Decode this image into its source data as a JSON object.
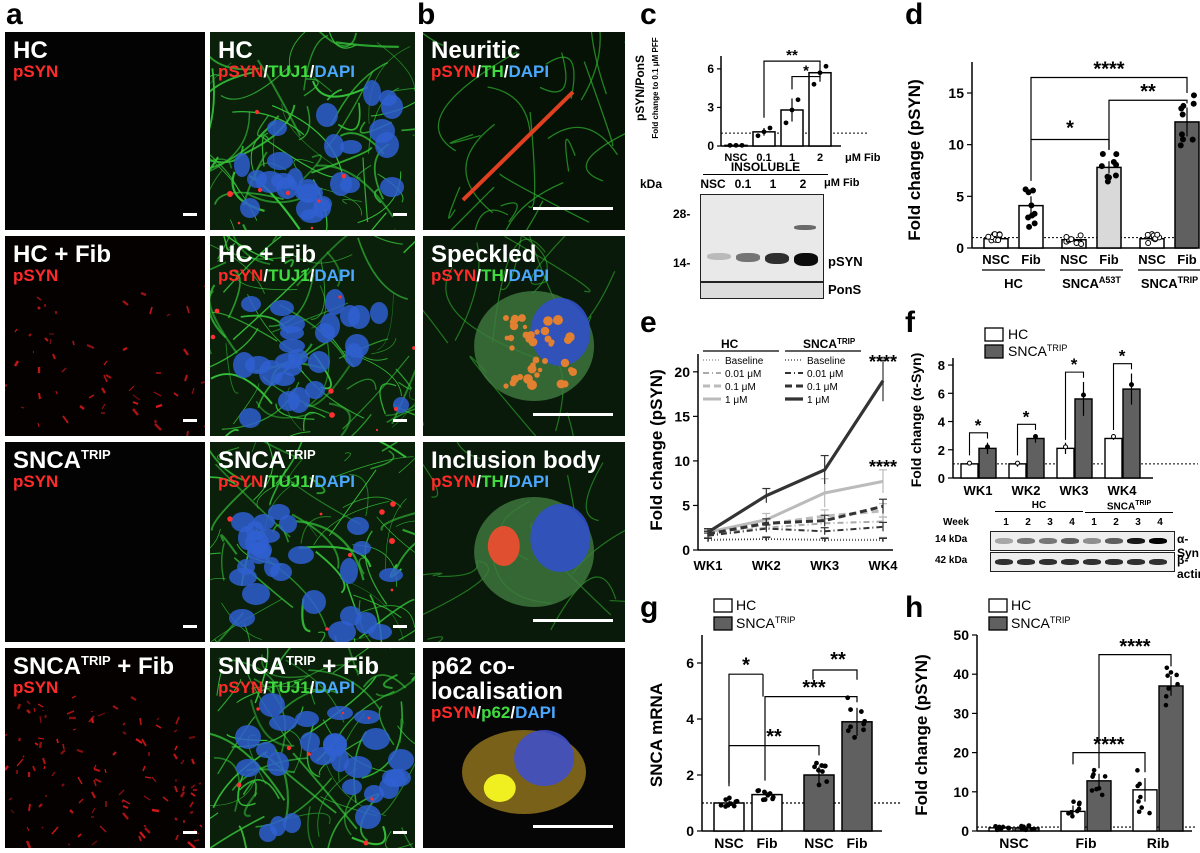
{
  "panel_letters": {
    "a": "a",
    "b": "b",
    "c": "c",
    "d": "d",
    "e": "e",
    "f": "f",
    "g": "g",
    "h": "h"
  },
  "micro": {
    "a1": {
      "title": "HC",
      "ch": [
        "pSYN"
      ]
    },
    "a2": {
      "title": "HC",
      "ch": [
        "pSYN",
        "/",
        "TUJ1",
        "/",
        "DAPI"
      ]
    },
    "a3": {
      "title": "HC + Fib",
      "ch": [
        "pSYN"
      ]
    },
    "a4": {
      "title": "HC + Fib",
      "ch": [
        "pSYN",
        "/",
        "TUJ1",
        "/",
        "DAPI"
      ]
    },
    "a5": {
      "title": "SNCA",
      "sup": "TRIP",
      "ch": [
        "pSYN"
      ]
    },
    "a6": {
      "title": "SNCA",
      "sup": "TRIP",
      "ch": [
        "pSYN",
        "/",
        "TUJ1",
        "/",
        "DAPI"
      ]
    },
    "a7": {
      "title": "SNCA",
      "sup": "TRIP",
      "suffix": " + Fib",
      "ch": [
        "pSYN"
      ]
    },
    "a8": {
      "title": "SNCA",
      "sup": "TRIP",
      "suffix": " + Fib",
      "ch": [
        "pSYN",
        "/",
        "TUJ1",
        "/",
        "DAPI"
      ]
    },
    "b1": {
      "title": "Neuritic",
      "ch": [
        "pSYN",
        "/",
        "TH",
        "/",
        "DAPI"
      ]
    },
    "b2": {
      "title": "Speckled",
      "ch": [
        "pSYN",
        "/",
        "TH",
        "/",
        "DAPI"
      ]
    },
    "b3": {
      "title": "Inclusion body",
      "ch": [
        "pSYN",
        "/",
        "TH",
        "/",
        "DAPI"
      ]
    },
    "b4": {
      "title": "p62 co-localisation",
      "ch": [
        "pSYN",
        "/",
        "p62",
        "/",
        "DAPI"
      ]
    }
  },
  "colors": {
    "red": "#ff2a2a",
    "green": "#3fdc3f",
    "blue": "#4aa8ff",
    "light_bar": "#d9d9d9",
    "dark_bar": "#555555"
  },
  "blot_c": {
    "title": "INSOLUBLE",
    "kda": "kDa",
    "lanes": [
      "NSC",
      "0.1",
      "1",
      "2"
    ],
    "unit": "μM Fib",
    "markers": [
      "28-",
      "14-"
    ],
    "band1": "pSYN",
    "band2": "PonS"
  },
  "blot_f": {
    "week_label": "Week",
    "weeks": [
      "1",
      "2",
      "3",
      "4",
      "1",
      "2",
      "3",
      "4"
    ],
    "groups": [
      "HC",
      "SNCA"
    ],
    "group_sup": "TRIP",
    "rows": [
      {
        "kda": "14 kDa",
        "name": "α-Syn"
      },
      {
        "kda": "42 kDa",
        "name": "β-actin"
      }
    ]
  },
  "chart_data": [
    {
      "panel": "c",
      "type": "bar",
      "categories": [
        "NSC",
        "0.1",
        "1",
        "2"
      ],
      "values": [
        0.05,
        1.1,
        2.8,
        5.7
      ],
      "errors": [
        0.02,
        0.3,
        0.9,
        0.7
      ],
      "points": [
        [
          0.05,
          0.05,
          0.05
        ],
        [
          0.8,
          1.1,
          1.4
        ],
        [
          1.8,
          2.8,
          3.6
        ],
        [
          4.8,
          5.7,
          6.2
        ]
      ],
      "ylabel": "pSYN/PonS",
      "ylabel2": "Fold change to 0.1 μM PFF",
      "xunit": "μM Fib",
      "yticks": [
        0,
        3,
        6
      ],
      "ylim": [
        0,
        7
      ],
      "ref": 1,
      "sig": [
        {
          "text": "**"
        },
        {
          "text": "*"
        }
      ]
    },
    {
      "panel": "d",
      "type": "bar",
      "categories": [
        "NSC",
        "Fib",
        "NSC",
        "Fib",
        "NSC",
        "Fib"
      ],
      "groups": [
        {
          "name": "HC"
        },
        {
          "name": "SNCA",
          "sup": "A53T"
        },
        {
          "name": "SNCA",
          "sup": "TRIP"
        }
      ],
      "values": [
        0.9,
        4.1,
        0.8,
        7.8,
        0.9,
        12.2
      ],
      "errors": [
        0.2,
        0.9,
        0.2,
        0.6,
        0.2,
        1.4
      ],
      "ylabel": "Fold change (pSYN)",
      "yticks": [
        0,
        5,
        10,
        15
      ],
      "ylim": [
        0,
        18
      ],
      "ref": 1,
      "sig": [
        {
          "text": "****"
        },
        {
          "text": "**"
        },
        {
          "text": "*"
        }
      ]
    },
    {
      "panel": "e",
      "type": "line",
      "x": [
        "WK1",
        "WK2",
        "WK3",
        "WK4"
      ],
      "ylabel": "Fold change (pSYN)",
      "yticks": [
        0,
        5,
        10,
        15,
        20
      ],
      "ylim": [
        0,
        22
      ],
      "legend_titles": [
        "HC",
        "SNCA"
      ],
      "legend_sup": "TRIP",
      "legend_items": [
        "Baseline",
        "0.01 μM",
        "0.1 μM",
        "1 μM"
      ],
      "series": [
        {
          "name": "Baseline",
          "group": "HC",
          "values": [
            1.2,
            1.3,
            1.2,
            1.2
          ],
          "errors": [
            0.2,
            0.2,
            0.2,
            0.2
          ]
        },
        {
          "name": "0.01 μM",
          "group": "HC",
          "values": [
            1.8,
            2.5,
            3.0,
            3.2
          ],
          "errors": [
            0.3,
            0.4,
            0.5,
            0.5
          ]
        },
        {
          "name": "0.1 μM",
          "group": "HC",
          "values": [
            1.9,
            2.9,
            3.8,
            4.4
          ],
          "errors": [
            0.3,
            0.5,
            0.7,
            0.8
          ]
        },
        {
          "name": "1 μM",
          "group": "HC",
          "values": [
            2.0,
            3.4,
            6.4,
            7.7
          ],
          "errors": [
            0.3,
            0.7,
            1.6,
            1.3
          ]
        },
        {
          "name": "Baseline",
          "group": "SNCA",
          "values": [
            1.1,
            1.2,
            1.1,
            1.1
          ],
          "errors": [
            0.2,
            0.2,
            0.2,
            0.2
          ]
        },
        {
          "name": "0.01 μM",
          "group": "SNCA",
          "values": [
            1.6,
            2.4,
            2.1,
            2.6
          ],
          "errors": [
            0.3,
            0.4,
            0.4,
            0.5
          ]
        },
        {
          "name": "0.1 μM",
          "group": "SNCA",
          "values": [
            1.8,
            3.0,
            3.3,
            4.9
          ],
          "errors": [
            0.3,
            0.5,
            0.6,
            0.8
          ]
        },
        {
          "name": "1 μM",
          "group": "SNCA",
          "values": [
            2.0,
            6.1,
            9.0,
            19.0
          ],
          "errors": [
            0.4,
            0.8,
            1.6,
            2.3
          ]
        }
      ],
      "sig": [
        {
          "text": "****"
        },
        {
          "text": "****"
        }
      ]
    },
    {
      "panel": "f",
      "type": "bar",
      "categories": [
        "WK1",
        "WK2",
        "WK3",
        "WK4"
      ],
      "legend": [
        {
          "name": "HC"
        },
        {
          "name": "SNCA",
          "sup": "TRIP"
        }
      ],
      "series": [
        {
          "name": "HC",
          "values": [
            1.0,
            1.0,
            2.1,
            2.8
          ],
          "errors": [
            0.1,
            0.2,
            0.4,
            0.1
          ]
        },
        {
          "name": "SNCA",
          "values": [
            2.1,
            2.8,
            5.6,
            6.3
          ],
          "errors": [
            0.4,
            0.3,
            1.2,
            1.1
          ]
        }
      ],
      "ylabel": "Fold change (α-Syn)",
      "yticks": [
        0,
        2,
        4,
        6,
        8
      ],
      "ylim": [
        0,
        8.5
      ],
      "ref": 1,
      "sig": [
        {
          "text": "*"
        },
        {
          "text": "*"
        },
        {
          "text": "*"
        },
        {
          "text": "*"
        }
      ]
    },
    {
      "panel": "g",
      "type": "bar",
      "categories": [
        "NSC",
        "Fib",
        "NSC",
        "Fib"
      ],
      "legend": [
        {
          "name": "HC"
        },
        {
          "name": "SNCA",
          "sup": "TRIP"
        }
      ],
      "values": [
        1.0,
        1.3,
        2.0,
        3.9
      ],
      "errors": [
        0.1,
        0.1,
        0.3,
        0.5
      ],
      "ylabel": "SNCA mRNA",
      "yticks": [
        0,
        2,
        4,
        6
      ],
      "ylim": [
        0,
        7
      ],
      "ref": 1,
      "sig": [
        {
          "text": "*"
        },
        {
          "text": "***"
        },
        {
          "text": "**"
        },
        {
          "text": "**"
        }
      ]
    },
    {
      "panel": "h",
      "type": "bar",
      "categories": [
        "NSC",
        "Fib",
        "Rib"
      ],
      "legend": [
        {
          "name": "HC"
        },
        {
          "name": "SNCA",
          "sup": "TRIP"
        }
      ],
      "series": [
        {
          "name": "HC",
          "values": [
            0.8,
            5.0,
            10.5
          ],
          "errors": [
            0.3,
            1.5,
            3.0
          ]
        },
        {
          "name": "SNCA",
          "values": [
            0.8,
            12.8,
            37.0
          ],
          "errors": [
            0.3,
            1.8,
            2.5
          ]
        }
      ],
      "ylabel": "Fold change (pSYN)",
      "yticks": [
        0,
        10,
        20,
        30,
        40,
        50
      ],
      "ylim": [
        0,
        50
      ],
      "ref": 1,
      "sig": [
        {
          "text": "****"
        },
        {
          "text": "****"
        }
      ]
    }
  ]
}
